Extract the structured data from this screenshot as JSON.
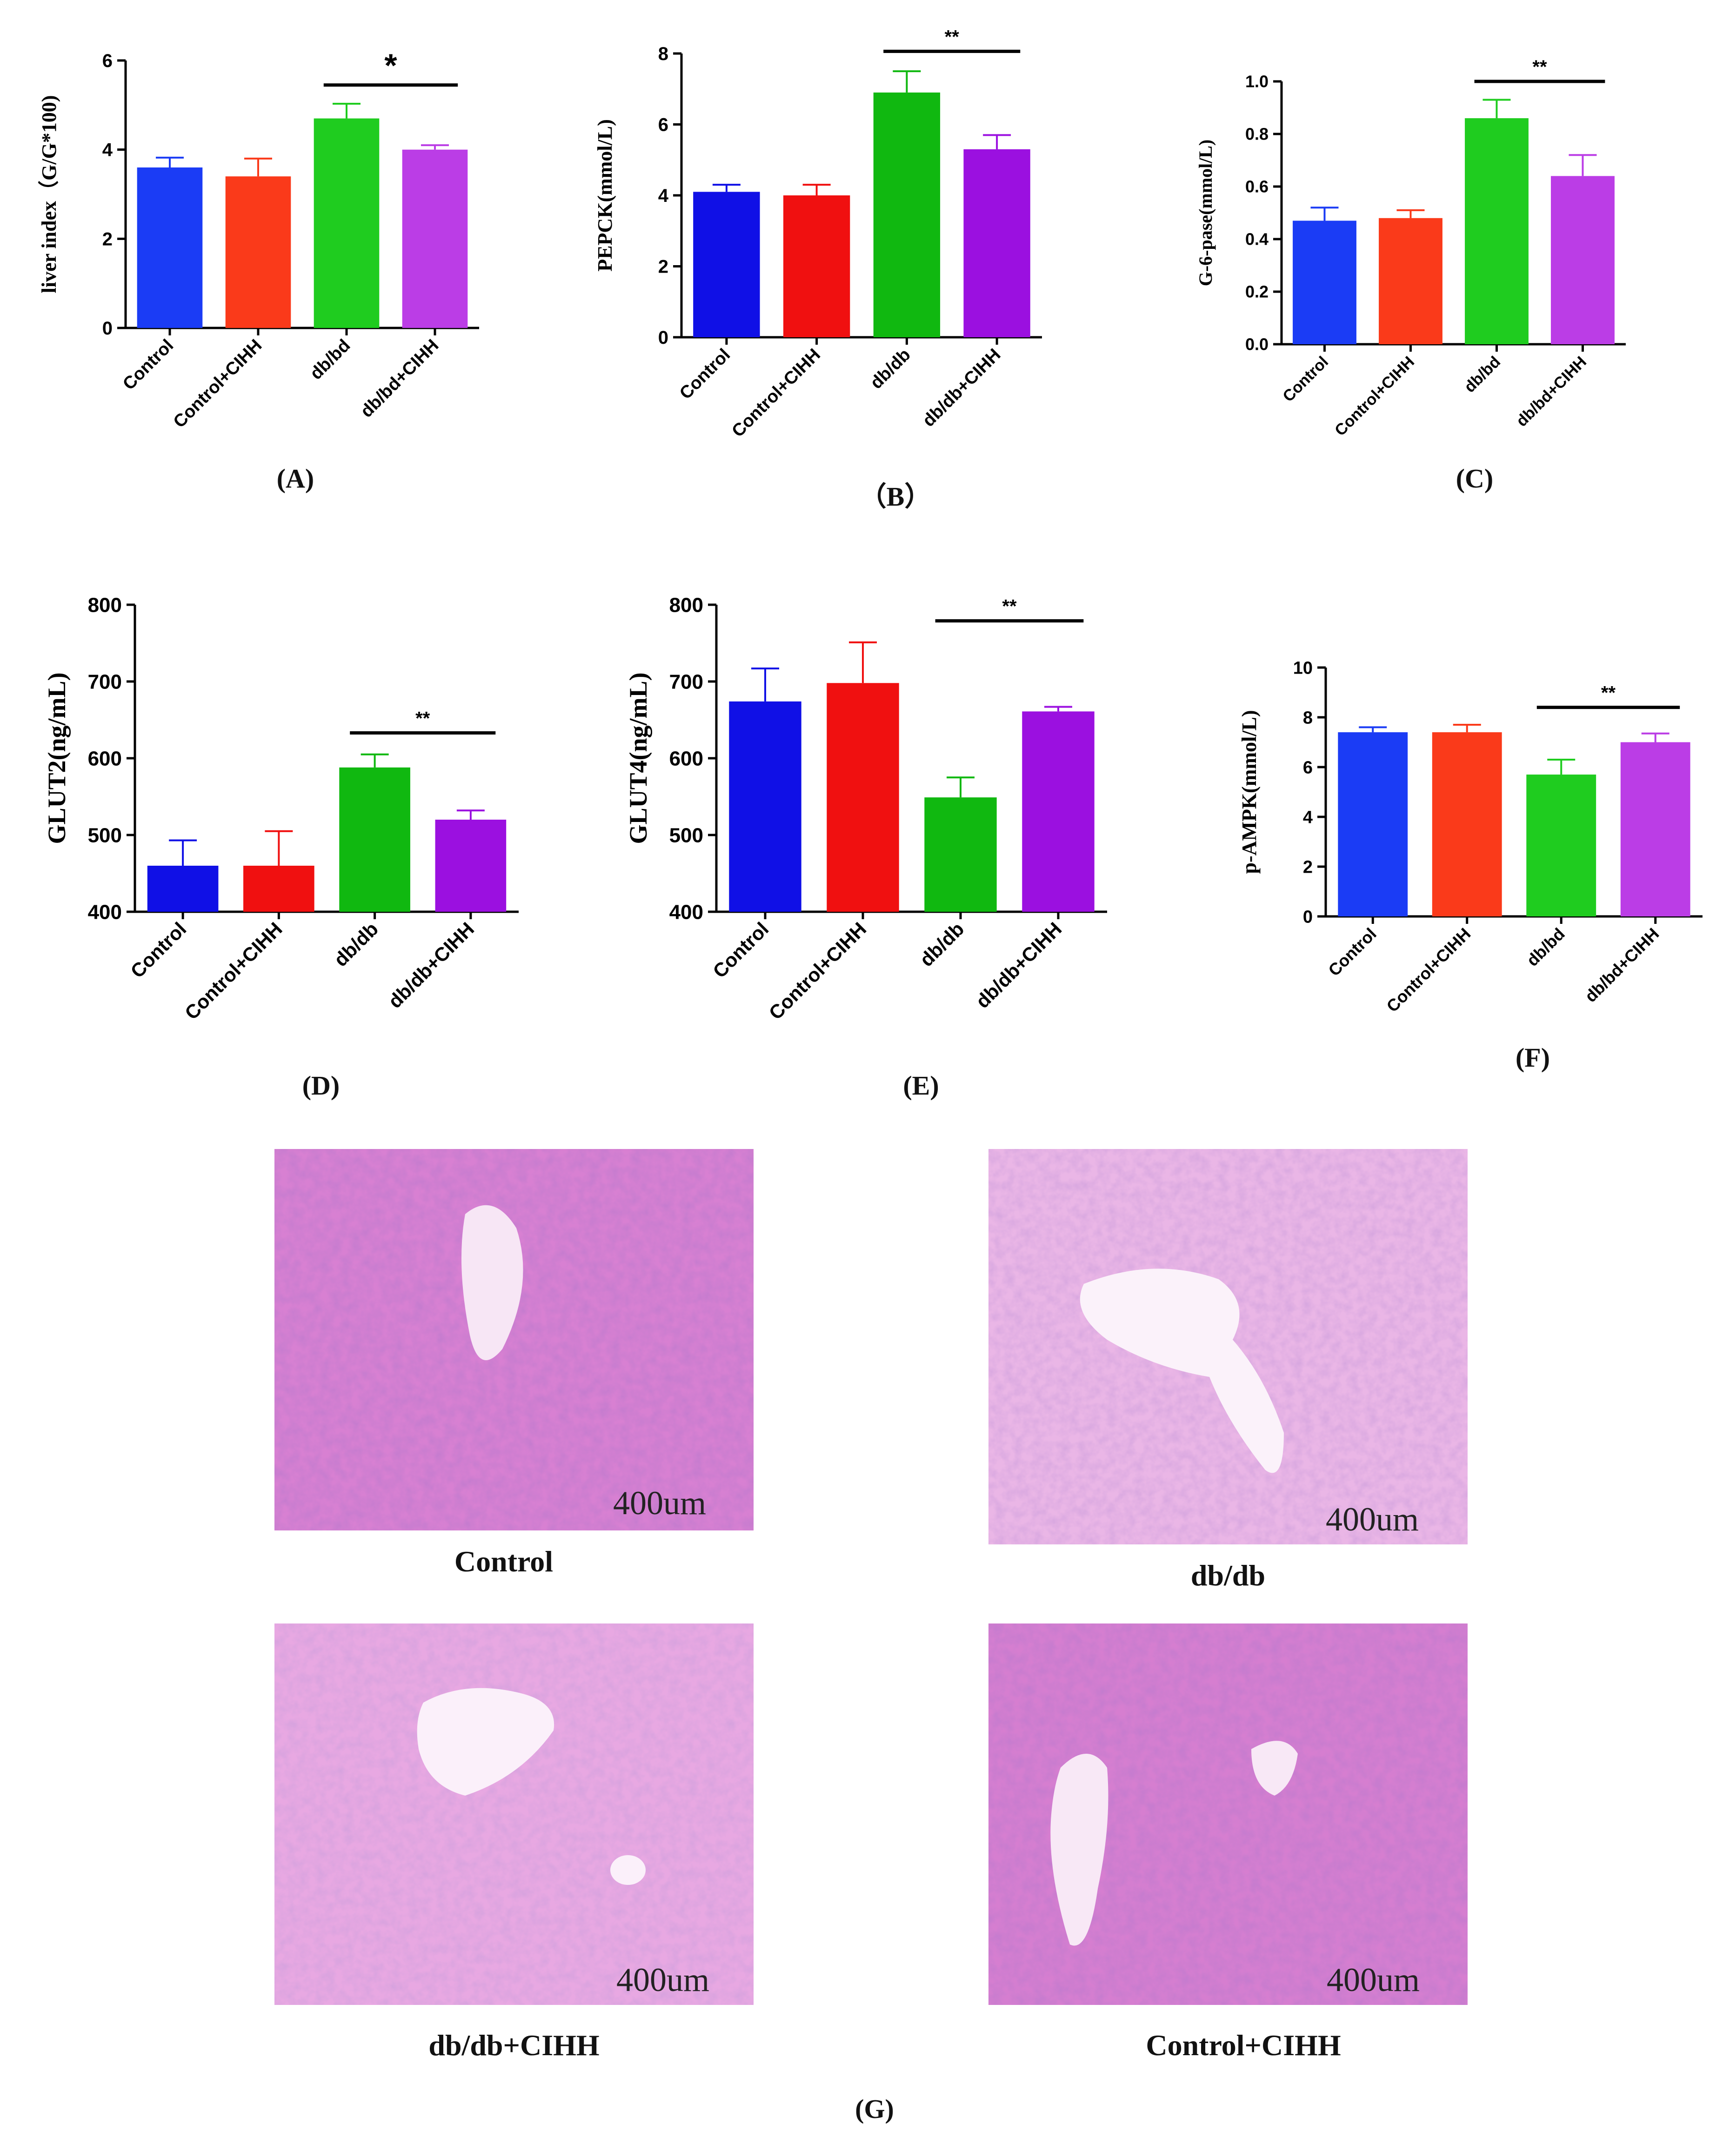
{
  "chart_data": [
    {
      "type": "bar",
      "panel": "(A)",
      "ylabel": "liver index（G/G*100)",
      "categories": [
        "Control",
        "Control+CIHH",
        "db/bd",
        "db/bd+CIHH"
      ],
      "values": [
        3.6,
        3.4,
        4.7,
        4.0
      ],
      "errors": [
        0.22,
        0.4,
        0.33,
        0.1
      ],
      "colors": [
        "#1b3cf5",
        "#fa3a1a",
        "#1fcc1f",
        "#bb3de6"
      ],
      "ylim": [
        0,
        6
      ],
      "yticks": [
        "0",
        "2",
        "4",
        "6"
      ],
      "significance": {
        "from": 2,
        "to": 3,
        "label": "*"
      }
    },
    {
      "type": "bar",
      "panel": "（B）",
      "ylabel": "PEPCK(mmol/L)",
      "categories": [
        "Control",
        "Control+CIHH",
        "db/db",
        "db/db+CIHH"
      ],
      "values": [
        4.1,
        4.0,
        6.9,
        5.3
      ],
      "errors": [
        0.2,
        0.3,
        0.6,
        0.4
      ],
      "colors": [
        "#1010e6",
        "#f01010",
        "#10b810",
        "#9b10e0"
      ],
      "ylim": [
        0,
        8
      ],
      "yticks": [
        "0",
        "2",
        "4",
        "6",
        "8"
      ],
      "significance": {
        "from": 2,
        "to": 3,
        "label": "**"
      }
    },
    {
      "type": "bar",
      "panel": "(C)",
      "ylabel": "G-6-pase(mmol/L)",
      "categories": [
        "Control",
        "Control+CIHH",
        "db/bd",
        "db/bd+CIHH"
      ],
      "values": [
        0.47,
        0.48,
        0.86,
        0.64
      ],
      "errors": [
        0.05,
        0.03,
        0.07,
        0.08
      ],
      "colors": [
        "#1b3cf5",
        "#fa3a1a",
        "#1fcc1f",
        "#bb3de6"
      ],
      "ylim": [
        0,
        1.0
      ],
      "yticks": [
        "0.0",
        "0.2",
        "0.4",
        "0.6",
        "0.8",
        "1.0"
      ],
      "significance": {
        "from": 2,
        "to": 3,
        "label": "**"
      }
    },
    {
      "type": "bar",
      "panel": "(D)",
      "ylabel": "GLUT2(ng/mL)",
      "categories": [
        "Control",
        "Control+CIHH",
        "db/db",
        "db/db+CIHH"
      ],
      "values": [
        460,
        460,
        588,
        520
      ],
      "errors": [
        33,
        45,
        17,
        12
      ],
      "colors": [
        "#1010e6",
        "#f01010",
        "#10b810",
        "#9b10e0"
      ],
      "ylim": [
        400,
        800
      ],
      "yticks": [
        "400",
        "500",
        "600",
        "700",
        "800"
      ],
      "significance": {
        "from": 2,
        "to": 3,
        "label": "**"
      }
    },
    {
      "type": "bar",
      "panel": "(E)",
      "ylabel": "GLUT4(ng/mL)",
      "categories": [
        "Control",
        "Control+CIHH",
        "db/db",
        "db/db+CIHH"
      ],
      "values": [
        674,
        698,
        549,
        661
      ],
      "errors": [
        43,
        53,
        26,
        6
      ],
      "colors": [
        "#1010e6",
        "#f01010",
        "#10b810",
        "#9b10e0"
      ],
      "ylim": [
        400,
        800
      ],
      "yticks": [
        "400",
        "500",
        "600",
        "700",
        "800"
      ],
      "significance": {
        "from": 2,
        "to": 3,
        "label": "**"
      }
    },
    {
      "type": "bar",
      "panel": "(F)",
      "ylabel": "p-AMPK(mmol/L)",
      "categories": [
        "Control",
        "Control+CIHH",
        "db/bd",
        "db/bd+CIHH"
      ],
      "values": [
        7.4,
        7.4,
        5.7,
        7.0
      ],
      "errors": [
        0.2,
        0.3,
        0.6,
        0.35
      ],
      "colors": [
        "#1b3cf5",
        "#fa3a1a",
        "#1fcc1f",
        "#bb3de6"
      ],
      "ylim": [
        0,
        10
      ],
      "yticks": [
        "0",
        "2",
        "4",
        "6",
        "8",
        "10"
      ],
      "significance": {
        "from": 2,
        "to": 3,
        "label": "**"
      }
    }
  ],
  "histology": {
    "panel": "(G)",
    "scale_label": "400um",
    "images": [
      {
        "caption": "Control"
      },
      {
        "caption": "db/db"
      },
      {
        "caption": "db/db+CIHH"
      },
      {
        "caption": "Control+CIHH"
      }
    ]
  }
}
